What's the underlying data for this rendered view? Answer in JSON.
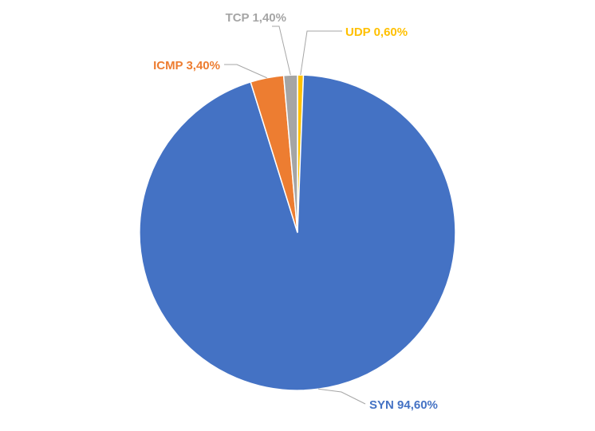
{
  "chart_data": {
    "type": "pie",
    "title": "",
    "start_angle_deg": 0,
    "direction": "clockwise",
    "legend": "none",
    "slices": [
      {
        "name": "UDP",
        "value": 0.6,
        "label": "UDP 0,60%",
        "color": "#ffc000"
      },
      {
        "name": "SYN",
        "value": 94.6,
        "label": "SYN 94,60%",
        "color": "#4472c4"
      },
      {
        "name": "ICMP",
        "value": 3.4,
        "label": "ICMP 3,40%",
        "color": "#ed7d31"
      },
      {
        "name": "TCP",
        "value": 1.4,
        "label": "TCP 1,40%",
        "color": "#a5a5a5"
      }
    ]
  }
}
